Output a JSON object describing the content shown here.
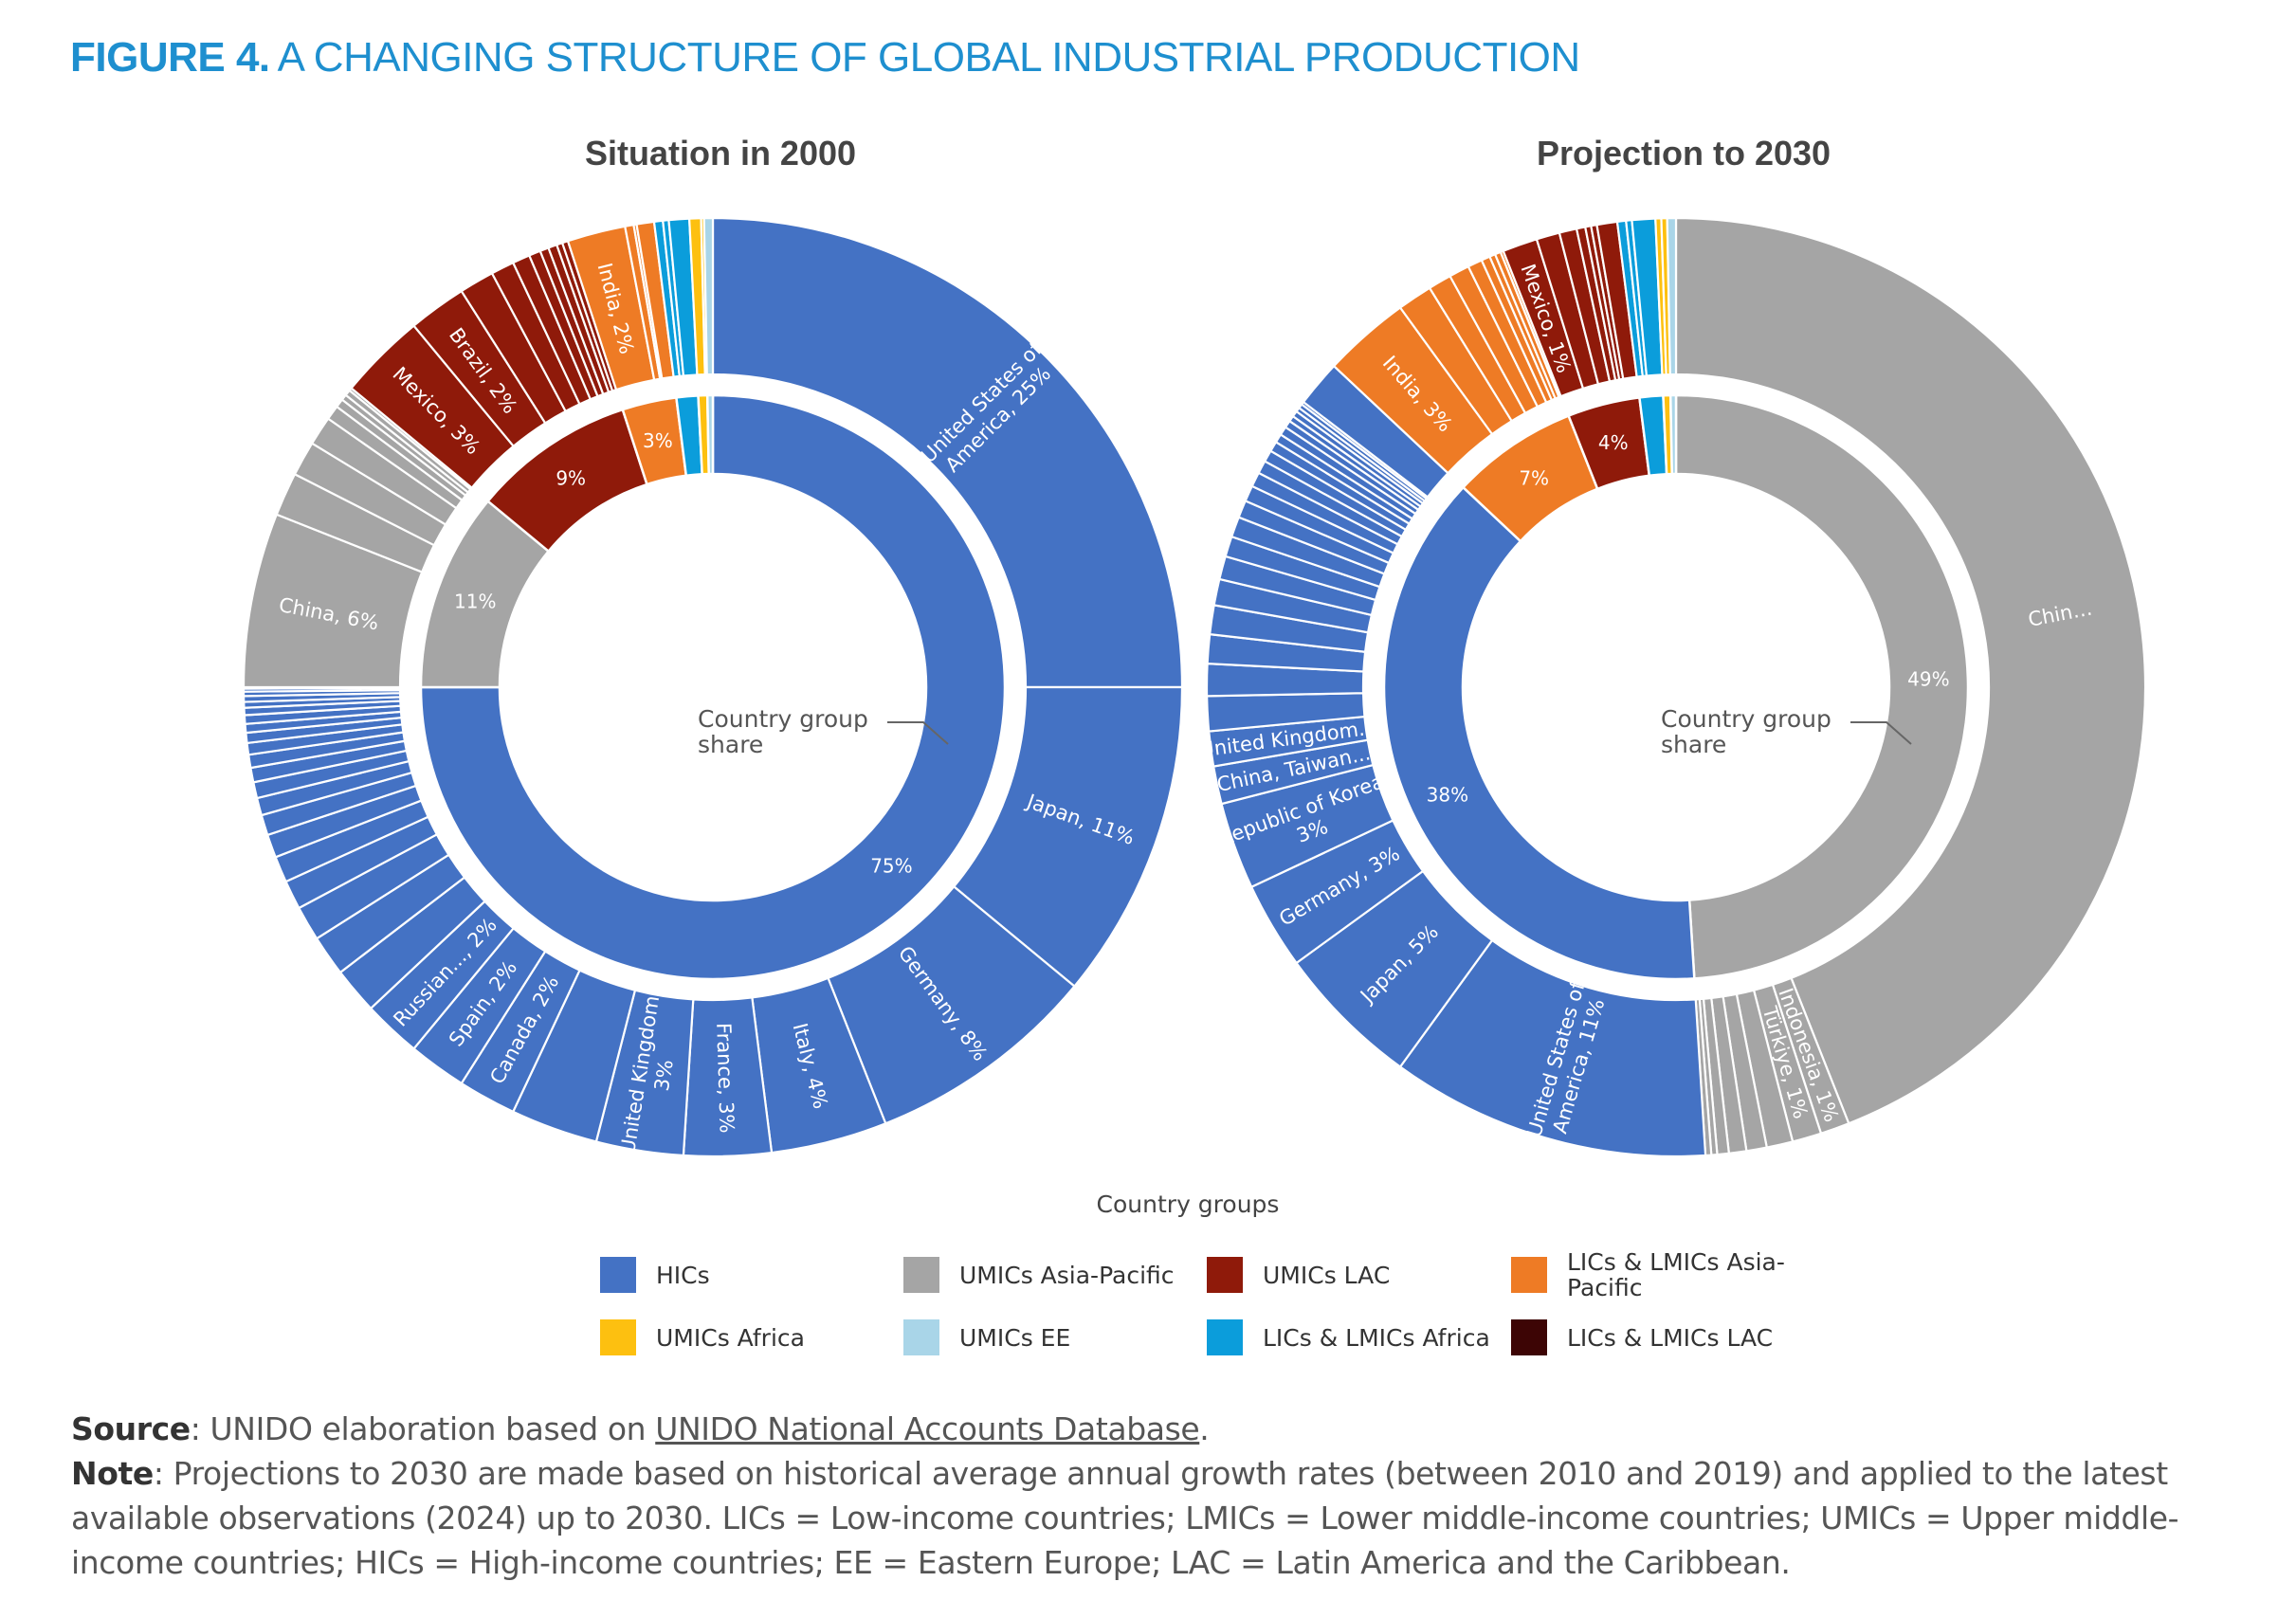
{
  "title": {
    "figure_label": "FIGURE 4.",
    "text": "A CHANGING STRUCTURE OF GLOBAL INDUSTRIAL PRODUCTION"
  },
  "colors": {
    "HICs": "#4472c4",
    "UMICs Asia-Pacific": "#a5a5a5",
    "UMICs LAC": "#8f1a0a",
    "LICs & LMICs Asia-Pacific": "#ee7b25",
    "UMICs Africa": "#fdc010",
    "UMICs EE": "#a9d5e8",
    "LICs & LMICs Africa": "#0b9ddb",
    "LICs & LMICs LAC": "#3d0505"
  },
  "chart_data": [
    {
      "type": "pie",
      "subtype": "sunburst-donut",
      "title": "Situation in 2000",
      "annotation": "Country group share",
      "inner": [
        {
          "group": "HICs",
          "value": 75,
          "label": "75%"
        },
        {
          "group": "UMICs Asia-Pacific",
          "value": 11,
          "label": "11%"
        },
        {
          "group": "UMICs LAC",
          "value": 9,
          "label": "9%"
        },
        {
          "group": "LICs & LMICs Asia-Pacific",
          "value": 3,
          "label": "3%"
        },
        {
          "group": "LICs & LMICs Africa",
          "value": 1.2,
          "label": ""
        },
        {
          "group": "UMICs Africa",
          "value": 0.5,
          "label": ""
        },
        {
          "group": "UMICs EE",
          "value": 0.3,
          "label": ""
        }
      ],
      "outer": [
        {
          "group": "HICs",
          "value": 25,
          "label": "United States of America, 25%"
        },
        {
          "group": "HICs",
          "value": 11,
          "label": "Japan, 11%"
        },
        {
          "group": "HICs",
          "value": 8,
          "label": "Germany, 8%"
        },
        {
          "group": "HICs",
          "value": 4,
          "label": "Italy, 4%"
        },
        {
          "group": "HICs",
          "value": 3,
          "label": "France, 3%"
        },
        {
          "group": "HICs",
          "value": 3,
          "label": "United Kingdom, 3%"
        },
        {
          "group": "HICs",
          "value": 3,
          "label": ""
        },
        {
          "group": "HICs",
          "value": 2,
          "label": "Canada, 2%"
        },
        {
          "group": "HICs",
          "value": 2,
          "label": "Spain, 2%"
        },
        {
          "group": "HICs",
          "value": 2,
          "label": "Russian..., 2%"
        },
        {
          "group": "HICs",
          "value": 1.6
        },
        {
          "group": "HICs",
          "value": 1.4
        },
        {
          "group": "HICs",
          "value": 1.2
        },
        {
          "group": "HICs",
          "value": 1.0
        },
        {
          "group": "HICs",
          "value": 0.9
        },
        {
          "group": "HICs",
          "value": 0.8
        },
        {
          "group": "HICs",
          "value": 0.7
        },
        {
          "group": "HICs",
          "value": 0.6
        },
        {
          "group": "HICs",
          "value": 0.55
        },
        {
          "group": "HICs",
          "value": 0.5
        },
        {
          "group": "HICs",
          "value": 0.45
        },
        {
          "group": "HICs",
          "value": 0.4
        },
        {
          "group": "HICs",
          "value": 0.35
        },
        {
          "group": "HICs",
          "value": 0.3
        },
        {
          "group": "HICs",
          "value": 0.3
        },
        {
          "group": "HICs",
          "value": 0.25
        },
        {
          "group": "HICs",
          "value": 0.2
        },
        {
          "group": "HICs",
          "value": 0.2
        },
        {
          "group": "HICs",
          "value": 0.15
        },
        {
          "group": "HICs",
          "value": 0.1
        },
        {
          "group": "HICs",
          "value": 0.05
        },
        {
          "group": "UMICs Asia-Pacific",
          "value": 6,
          "label": "China, 6%"
        },
        {
          "group": "UMICs Asia-Pacific",
          "value": 1.5
        },
        {
          "group": "UMICs Asia-Pacific",
          "value": 1.2
        },
        {
          "group": "UMICs Asia-Pacific",
          "value": 1.0
        },
        {
          "group": "UMICs Asia-Pacific",
          "value": 0.5
        },
        {
          "group": "UMICs Asia-Pacific",
          "value": 0.3
        },
        {
          "group": "UMICs Asia-Pacific",
          "value": 0.2
        },
        {
          "group": "UMICs Asia-Pacific",
          "value": 0.2
        },
        {
          "group": "UMICs Asia-Pacific",
          "value": 0.1
        },
        {
          "group": "UMICs LAC",
          "value": 3,
          "label": "Mexico, 3%"
        },
        {
          "group": "UMICs LAC",
          "value": 2,
          "label": "Brazil, 2%"
        },
        {
          "group": "UMICs LAC",
          "value": 1.2
        },
        {
          "group": "UMICs LAC",
          "value": 0.8
        },
        {
          "group": "UMICs LAC",
          "value": 0.6
        },
        {
          "group": "UMICs LAC",
          "value": 0.4
        },
        {
          "group": "UMICs LAC",
          "value": 0.3
        },
        {
          "group": "UMICs LAC",
          "value": 0.3
        },
        {
          "group": "UMICs LAC",
          "value": 0.2
        },
        {
          "group": "UMICs LAC",
          "value": 0.2
        },
        {
          "group": "LICs & LMICs Asia-Pacific",
          "value": 2,
          "label": "India, 2%"
        },
        {
          "group": "LICs & LMICs Asia-Pacific",
          "value": 0.3
        },
        {
          "group": "LICs & LMICs Asia-Pacific",
          "value": 0.1
        },
        {
          "group": "LICs & LMICs Asia-Pacific",
          "value": 0.6
        },
        {
          "group": "LICs & LMICs Africa",
          "value": 0.3
        },
        {
          "group": "LICs & LMICs Africa",
          "value": 0.2
        },
        {
          "group": "LICs & LMICs Africa",
          "value": 0.7
        },
        {
          "group": "UMICs Africa",
          "value": 0.4
        },
        {
          "group": "UMICs Africa",
          "value": 0.1
        },
        {
          "group": "UMICs EE",
          "value": 0.3
        }
      ]
    },
    {
      "type": "pie",
      "subtype": "sunburst-donut",
      "title": "Projection to 2030",
      "annotation": "Country group share",
      "inner": [
        {
          "group": "UMICs Asia-Pacific",
          "value": 49,
          "label": "49%"
        },
        {
          "group": "HICs",
          "value": 38,
          "label": "38%"
        },
        {
          "group": "LICs & LMICs Asia-Pacific",
          "value": 7,
          "label": "7%"
        },
        {
          "group": "UMICs LAC",
          "value": 4,
          "label": "4%"
        },
        {
          "group": "LICs & LMICs Africa",
          "value": 1.3,
          "label": ""
        },
        {
          "group": "UMICs Africa",
          "value": 0.4,
          "label": ""
        },
        {
          "group": "UMICs EE",
          "value": 0.3,
          "label": ""
        }
      ],
      "outer": [
        {
          "group": "UMICs Asia-Pacific",
          "value": 44,
          "label": "Chin…"
        },
        {
          "group": "UMICs Asia-Pacific",
          "value": 1,
          "label": "Indonesia, 1%"
        },
        {
          "group": "UMICs Asia-Pacific",
          "value": 1,
          "label": "Türkiye, 1%"
        },
        {
          "group": "UMICs Asia-Pacific",
          "value": 0.9
        },
        {
          "group": "UMICs Asia-Pacific",
          "value": 0.7
        },
        {
          "group": "UMICs Asia-Pacific",
          "value": 0.6
        },
        {
          "group": "UMICs Asia-Pacific",
          "value": 0.4
        },
        {
          "group": "UMICs Asia-Pacific",
          "value": 0.2
        },
        {
          "group": "UMICs Asia-Pacific",
          "value": 0.2
        },
        {
          "group": "HICs",
          "value": 11,
          "label": "United States of America, 11%"
        },
        {
          "group": "HICs",
          "value": 5,
          "label": "Japan, 5%"
        },
        {
          "group": "HICs",
          "value": 3,
          "label": "Germany, 3%"
        },
        {
          "group": "HICs",
          "value": 3,
          "label": "Republic of Korea, 3%"
        },
        {
          "group": "HICs",
          "value": 1.3,
          "label": "China, Taiwan..."
        },
        {
          "group": "HICs",
          "value": 1.2,
          "label": "United Kingdom..."
        },
        {
          "group": "HICs",
          "value": 1.2
        },
        {
          "group": "HICs",
          "value": 1.1
        },
        {
          "group": "HICs",
          "value": 1.0
        },
        {
          "group": "HICs",
          "value": 1.0
        },
        {
          "group": "HICs",
          "value": 0.9
        },
        {
          "group": "HICs",
          "value": 0.8
        },
        {
          "group": "HICs",
          "value": 0.7
        },
        {
          "group": "HICs",
          "value": 0.7
        },
        {
          "group": "HICs",
          "value": 0.6
        },
        {
          "group": "HICs",
          "value": 0.55
        },
        {
          "group": "HICs",
          "value": 0.5
        },
        {
          "group": "HICs",
          "value": 0.45
        },
        {
          "group": "HICs",
          "value": 0.4
        },
        {
          "group": "HICs",
          "value": 0.35
        },
        {
          "group": "HICs",
          "value": 0.3
        },
        {
          "group": "HICs",
          "value": 0.3
        },
        {
          "group": "HICs",
          "value": 0.25
        },
        {
          "group": "HICs",
          "value": 0.2
        },
        {
          "group": "HICs",
          "value": 0.2
        },
        {
          "group": "HICs",
          "value": 0.15
        },
        {
          "group": "HICs",
          "value": 0.15
        },
        {
          "group": "HICs",
          "value": 0.1
        },
        {
          "group": "HICs",
          "value": 1.6
        },
        {
          "group": "LICs & LMICs Asia-Pacific",
          "value": 3,
          "label": "India, 3%"
        },
        {
          "group": "LICs & LMICs Asia-Pacific",
          "value": 1.2
        },
        {
          "group": "LICs & LMICs Asia-Pacific",
          "value": 0.8
        },
        {
          "group": "LICs & LMICs Asia-Pacific",
          "value": 0.7
        },
        {
          "group": "LICs & LMICs Asia-Pacific",
          "value": 0.5
        },
        {
          "group": "LICs & LMICs Asia-Pacific",
          "value": 0.3
        },
        {
          "group": "LICs & LMICs Asia-Pacific",
          "value": 0.2
        },
        {
          "group": "LICs & LMICs Asia-Pacific",
          "value": 0.2
        },
        {
          "group": "LICs & LMICs Asia-Pacific",
          "value": 0.1
        },
        {
          "group": "UMICs LAC",
          "value": 1.2,
          "label": "Mexico, 1%"
        },
        {
          "group": "UMICs LAC",
          "value": 0.8
        },
        {
          "group": "UMICs LAC",
          "value": 0.6
        },
        {
          "group": "UMICs LAC",
          "value": 0.3
        },
        {
          "group": "UMICs LAC",
          "value": 0.2
        },
        {
          "group": "UMICs LAC",
          "value": 0.2
        },
        {
          "group": "UMICs LAC",
          "value": 0.7
        },
        {
          "group": "LICs & LMICs Africa",
          "value": 0.3
        },
        {
          "group": "LICs & LMICs Africa",
          "value": 0.2
        },
        {
          "group": "LICs & LMICs Africa",
          "value": 0.8
        },
        {
          "group": "UMICs Africa",
          "value": 0.2
        },
        {
          "group": "UMICs Africa",
          "value": 0.2
        },
        {
          "group": "UMICs EE",
          "value": 0.3
        }
      ]
    }
  ],
  "legend": {
    "title": "Country groups",
    "position": "bottom",
    "items": [
      "HICs",
      "UMICs Asia-Pacific",
      "UMICs LAC",
      "LICs & LMICs Asia-Pacific",
      "UMICs Africa",
      "UMICs EE",
      "LICs & LMICs Africa",
      "LICs & LMICs LAC"
    ]
  },
  "footer": {
    "source_label": "Source",
    "source_text": ": UNIDO elaboration based on ",
    "source_link": "UNIDO National Accounts Database",
    "source_end": ".",
    "note_label": "Note",
    "note_text": ": Projections to 2030 are made based on historical average annual growth rates (between 2010 and 2019) and applied to the latest available observations (2024) up to 2030. LICs = Low-income countries; LMICs = Lower middle-income countries; UMICs = Upper middle-income countries; HICs = High-income countries; EE = Eastern Europe; LAC = Latin America and the Caribbean."
  }
}
